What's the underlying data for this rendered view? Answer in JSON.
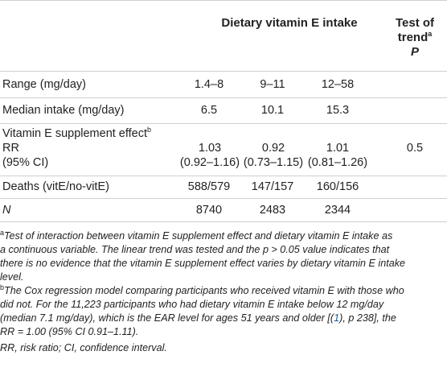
{
  "header": {
    "group_title": "Dietary vitamin E intake",
    "trend_line1": "Test of",
    "trend_line2": "trend",
    "trend_sup": "a",
    "trend_line3": "P"
  },
  "rows": [
    {
      "label": "Range (mg/day)",
      "col1": "1.4–8",
      "col2": "9–11",
      "col3": "12–58",
      "trend": ""
    },
    {
      "label": "Median intake (mg/day)",
      "col1": "6.5",
      "col2": "10.1",
      "col3": "15.3",
      "trend": ""
    }
  ],
  "effect_row": {
    "label_line1": "Vitamin E supplement effect",
    "label_sup": "b",
    "label_line2": "RR",
    "label_line3": "(95% CI)",
    "col1_rr": "1.03",
    "col1_ci": "(0.92–1.16)",
    "col2_rr": "0.92",
    "col2_ci": "(0.73–1.15)",
    "col3_rr": "1.01",
    "col3_ci": "(0.81–1.26)",
    "trend": "0.5"
  },
  "deaths_row": {
    "label": "Deaths (vitE/no-vitE)",
    "col1": "588/579",
    "col2": "147/157",
    "col3": "160/156"
  },
  "n_row": {
    "label": "N",
    "col1": "8740",
    "col2": "2483",
    "col3": "2344"
  },
  "footnotes": {
    "a_marker": "a",
    "a_line1": "Test of interaction between vitamin E supplement effect and dietary vitamin E intake as",
    "a_line2": "a continuous variable. The linear trend was tested and the p > 0.05 value indicates that",
    "a_line3": "there is no evidence that the vitamin E supplement effect varies by dietary vitamin E intake",
    "a_line4": "level.",
    "b_marker": "b",
    "b_line1": "The Cox regression model comparing participants who received vitamin E with those who",
    "b_line2": "did not. For the 11,223 participants who had dietary vitamin E intake below 12 mg/day",
    "b_line3_pre": "(median 7.1 mg/day), which is the EAR level for ages 51 years and older [(",
    "b_line3_ref": "1",
    "b_line3_post": "), p 238], the",
    "b_line4": "RR = 1.00 (95% CI 0.91–1.11).",
    "abbrev": "RR, risk ratio; CI, confidence interval."
  }
}
